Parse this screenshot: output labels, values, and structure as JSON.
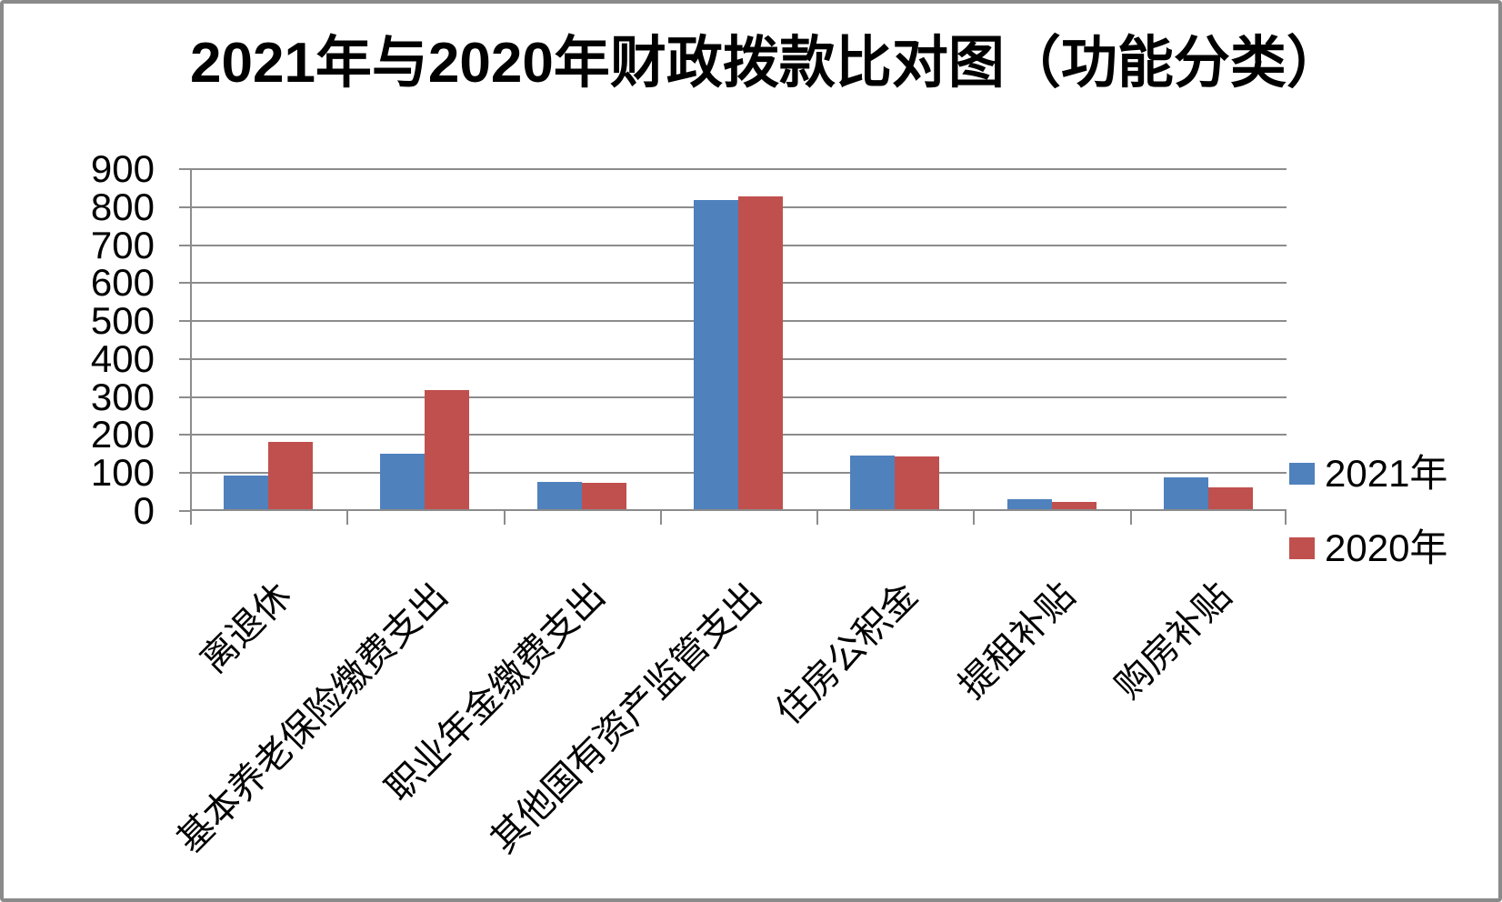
{
  "chart_data": {
    "type": "bar",
    "title": "2021年与2020年财政拨款比对图（功能分类）",
    "categories": [
      "离退休",
      "基本养老保险缴费支出",
      "职业年金缴费支出",
      "其他国有资产监管支出",
      "住房公积金",
      "提租补贴",
      "购房补贴"
    ],
    "series": [
      {
        "name": "2021年",
        "color": "#4F81BD",
        "values": [
          89,
          145,
          71,
          813,
          141,
          26,
          85
        ]
      },
      {
        "name": "2020年",
        "color": "#C0504D",
        "values": [
          176,
          314,
          69,
          823,
          140,
          20,
          57
        ]
      }
    ],
    "xlabel": "",
    "ylabel": "",
    "ylim": [
      0,
      900
    ],
    "ytick_step": 100,
    "yticks": [
      0,
      100,
      200,
      300,
      400,
      500,
      600,
      700,
      800,
      900
    ],
    "grid": true,
    "legend_position": "right",
    "x_label_rotation_deg": 45
  },
  "colors": {
    "grid": "#8C8C8C",
    "axis": "#8C8C8C",
    "border": "#8A8A8A",
    "text": "#000000",
    "background": "#FFFFFF"
  }
}
